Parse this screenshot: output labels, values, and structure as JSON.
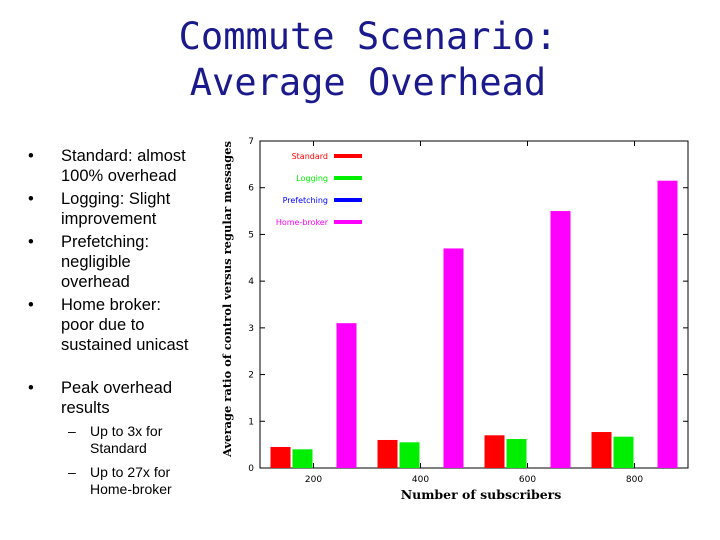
{
  "slide": {
    "title_line1": "Commute Scenario:",
    "title_line2": "Average Overhead"
  },
  "bullets": [
    {
      "marker": "•",
      "lines": [
        "Standard: almost",
        "100% overhead"
      ]
    },
    {
      "marker": "•",
      "lines": [
        "Logging: Slight",
        "improvement"
      ]
    },
    {
      "marker": "•",
      "lines": [
        "Prefetching:",
        "negligible",
        "overhead"
      ]
    },
    {
      "marker": "•",
      "lines": [
        "Home broker:",
        "poor due to",
        "sustained unicast"
      ]
    },
    {
      "marker": "•",
      "lines": [
        "Peak overhead",
        "results"
      ]
    }
  ],
  "sub_bullets": [
    {
      "marker": "–",
      "lines": [
        "Up to 3x for",
        "Standard"
      ]
    },
    {
      "marker": "–",
      "lines": [
        "Up to 27x for",
        "Home-broker"
      ]
    }
  ],
  "chart_data": {
    "type": "bar",
    "xlabel": "Number of subscribers",
    "ylabel": "Average ratio of control versus regular messages",
    "categories": [
      "200",
      "400",
      "600",
      "800"
    ],
    "ylim": [
      0,
      7
    ],
    "yticks": [
      "0",
      "1",
      "2",
      "3",
      "4",
      "5",
      "6",
      "7"
    ],
    "series": [
      {
        "name": "Standard",
        "color": "#ff0000",
        "values": [
          0.45,
          0.6,
          0.7,
          0.77
        ]
      },
      {
        "name": "Logging",
        "color": "#00ee00",
        "values": [
          0.4,
          0.55,
          0.62,
          0.67
        ]
      },
      {
        "name": "Prefetching",
        "color": "#0000ff",
        "values": [
          0.0,
          0.0,
          0.0,
          0.0
        ]
      },
      {
        "name": "Home-broker",
        "color": "#ff00ff",
        "values": [
          3.1,
          4.7,
          5.5,
          6.15
        ]
      }
    ],
    "legend_position": "top-right",
    "grid": false
  }
}
